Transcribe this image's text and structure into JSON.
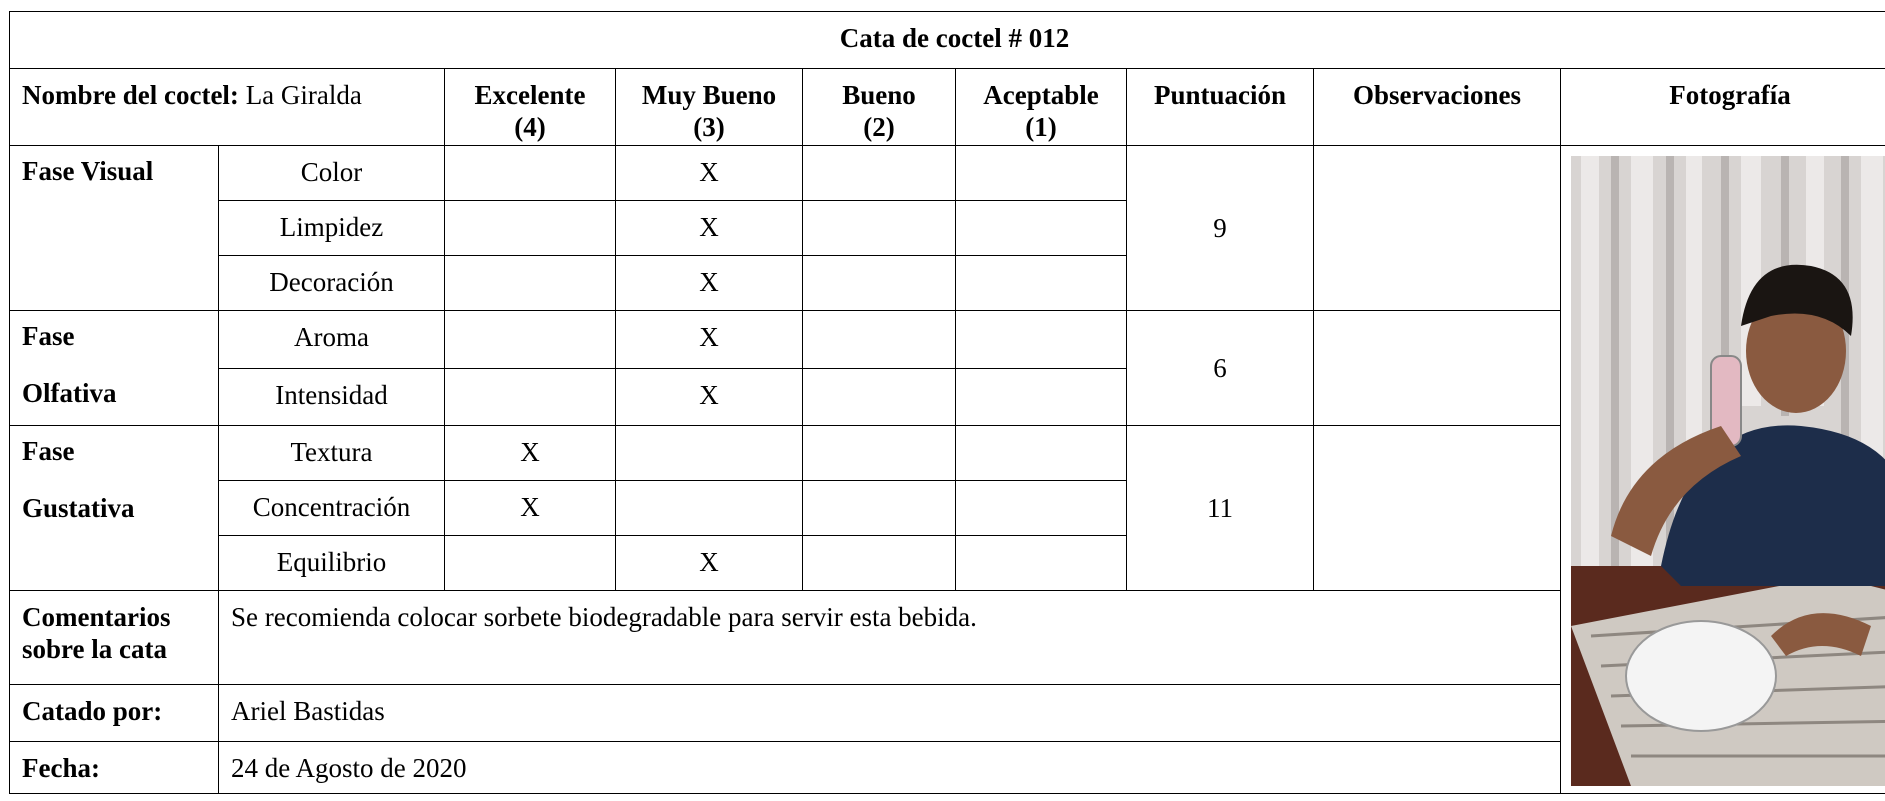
{
  "title": "Cata de coctel # 012",
  "header": {
    "name_label": "Nombre del coctel:",
    "name_value": "La Giralda",
    "ratings": [
      {
        "label": "Excelente",
        "score": "(4)"
      },
      {
        "label": "Muy Bueno",
        "score": "(3)"
      },
      {
        "label": "Bueno",
        "score": "(2)"
      },
      {
        "label": "Aceptable",
        "score": "(1)"
      }
    ],
    "score": "Puntuación",
    "observations": "Observaciones",
    "photo": "Fotografía"
  },
  "phases": [
    {
      "name": [
        "Fase Visual"
      ],
      "score": "9",
      "criteria": [
        {
          "name": "Color",
          "marks": [
            null,
            "X",
            null,
            null
          ]
        },
        {
          "name": "Limpidez",
          "marks": [
            null,
            "X",
            null,
            null
          ]
        },
        {
          "name": "Decoración",
          "marks": [
            null,
            "X",
            null,
            null
          ]
        }
      ]
    },
    {
      "name": [
        "Fase",
        "Olfativa"
      ],
      "score": "6",
      "criteria": [
        {
          "name": "Aroma",
          "marks": [
            null,
            "X",
            null,
            null
          ]
        },
        {
          "name": "Intensidad",
          "marks": [
            null,
            "X",
            null,
            null
          ]
        }
      ]
    },
    {
      "name": [
        "Fase",
        "Gustativa"
      ],
      "score": "11",
      "criteria": [
        {
          "name": "Textura",
          "marks": [
            "X",
            null,
            null,
            null
          ]
        },
        {
          "name": "Concentración",
          "marks": [
            "X",
            null,
            null,
            null
          ]
        },
        {
          "name": "Equilibrio",
          "marks": [
            null,
            "X",
            null,
            null
          ]
        }
      ]
    }
  ],
  "footer": [
    {
      "label": "Comentarios sobre la cata",
      "value": "Se recomienda colocar sorbete biodegradable para servir esta bebida."
    },
    {
      "label": "Catado por:",
      "value": "Ariel Bastidas"
    },
    {
      "label": "Fecha:",
      "value": "24 de Agosto de 2020"
    }
  ]
}
